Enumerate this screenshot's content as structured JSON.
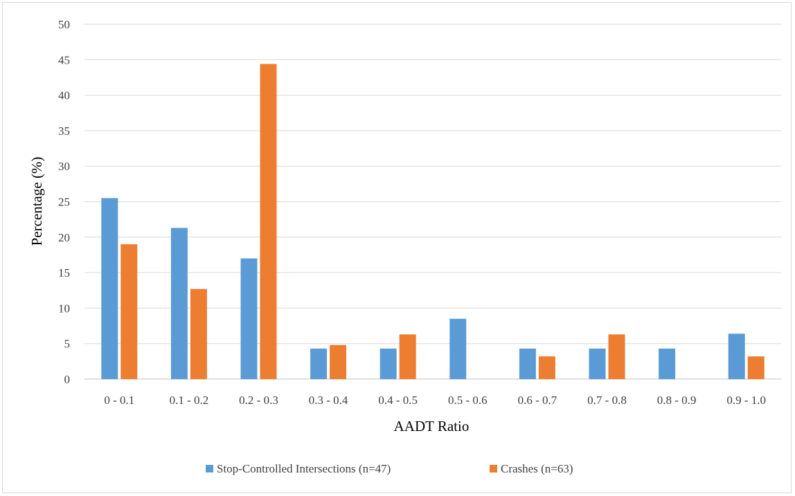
{
  "chart_data": {
    "type": "bar",
    "title": "",
    "xlabel": "AADT Ratio",
    "ylabel": "Percentage (%)",
    "ylim": [
      0,
      50
    ],
    "yticks": [
      0,
      5,
      10,
      15,
      20,
      25,
      30,
      35,
      40,
      45,
      50
    ],
    "grid": true,
    "legend_position": "bottom",
    "categories": [
      "0 - 0.1",
      "0.1 - 0.2",
      "0.2 - 0.3",
      "0.3 - 0.4",
      "0.4 - 0.5",
      "0.5 - 0.6",
      "0.6 - 0.7",
      "0.7 - 0.8",
      "0.8 - 0.9",
      "0.9 - 1.0"
    ],
    "series": [
      {
        "name": "Stop-Controlled Intersections (n=47)",
        "color": "#5b9bd5",
        "values": [
          25.5,
          21.3,
          17.0,
          4.3,
          4.3,
          8.5,
          4.3,
          4.3,
          4.3,
          6.4
        ]
      },
      {
        "name": "Crashes (n=63)",
        "color": "#ed7d31",
        "values": [
          19.0,
          12.7,
          44.4,
          4.8,
          6.3,
          0,
          3.2,
          6.3,
          0,
          3.2
        ]
      }
    ]
  }
}
